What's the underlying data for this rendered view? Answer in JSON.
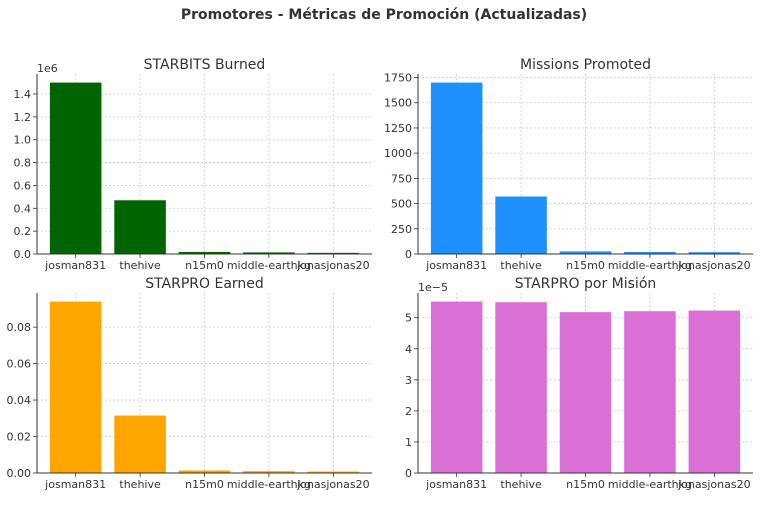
{
  "figure": {
    "suptitle": "Promotores - Métricas de Promoción (Actualizadas)"
  },
  "chart_data": [
    {
      "type": "bar",
      "title": "STARBITS Burned",
      "categories": [
        "josman831",
        "thehive",
        "n15m0",
        "middle-earthkg",
        "jonasjonas20"
      ],
      "values": [
        1500000,
        470000,
        18000,
        14000,
        10000
      ],
      "ylim": [
        0,
        1575000
      ],
      "yticks": [
        0,
        200000,
        400000,
        600000,
        800000,
        1000000,
        1200000,
        1400000
      ],
      "ytick_labels": [
        "0.0",
        "0.2",
        "0.4",
        "0.6",
        "0.8",
        "1.0",
        "1.2",
        "1.4"
      ],
      "offset_label": "1e6",
      "color": "#006400",
      "grid": true
    },
    {
      "type": "bar",
      "title": "Missions Promoted",
      "categories": [
        "josman831",
        "thehive",
        "n15m0",
        "middle-earthkg",
        "jonasjonas20"
      ],
      "values": [
        1700,
        570,
        26,
        20,
        18
      ],
      "ylim": [
        0,
        1785
      ],
      "yticks": [
        0,
        250,
        500,
        750,
        1000,
        1250,
        1500,
        1750
      ],
      "ytick_labels": [
        "0",
        "250",
        "500",
        "750",
        "1000",
        "1250",
        "1500",
        "1750"
      ],
      "offset_label": "",
      "color": "#1e90ff",
      "grid": true
    },
    {
      "type": "bar",
      "title": "STARPRO Earned",
      "categories": [
        "josman831",
        "thehive",
        "n15m0",
        "middle-earthkg",
        "jonasjonas20"
      ],
      "values": [
        0.094,
        0.0315,
        0.0014,
        0.001,
        0.0008
      ],
      "ylim": [
        0,
        0.0987
      ],
      "yticks": [
        0,
        0.02,
        0.04,
        0.06,
        0.08
      ],
      "ytick_labels": [
        "0.00",
        "0.02",
        "0.04",
        "0.06",
        "0.08"
      ],
      "offset_label": "",
      "color": "#ffa500",
      "grid": true
    },
    {
      "type": "bar",
      "title": "STARPRO por Misión",
      "categories": [
        "josman831",
        "thehive",
        "n15m0",
        "middle-earthkg",
        "jonasjonas20"
      ],
      "values": [
        5.52e-05,
        5.5e-05,
        5.18e-05,
        5.21e-05,
        5.23e-05
      ],
      "ylim": [
        0,
        5.796e-05
      ],
      "yticks": [
        0,
        1e-05,
        2e-05,
        3e-05,
        4e-05,
        5e-05
      ],
      "ytick_labels": [
        "0",
        "1",
        "2",
        "3",
        "4",
        "5"
      ],
      "offset_label": "1e−5",
      "color": "#da70d6",
      "grid": true
    }
  ]
}
